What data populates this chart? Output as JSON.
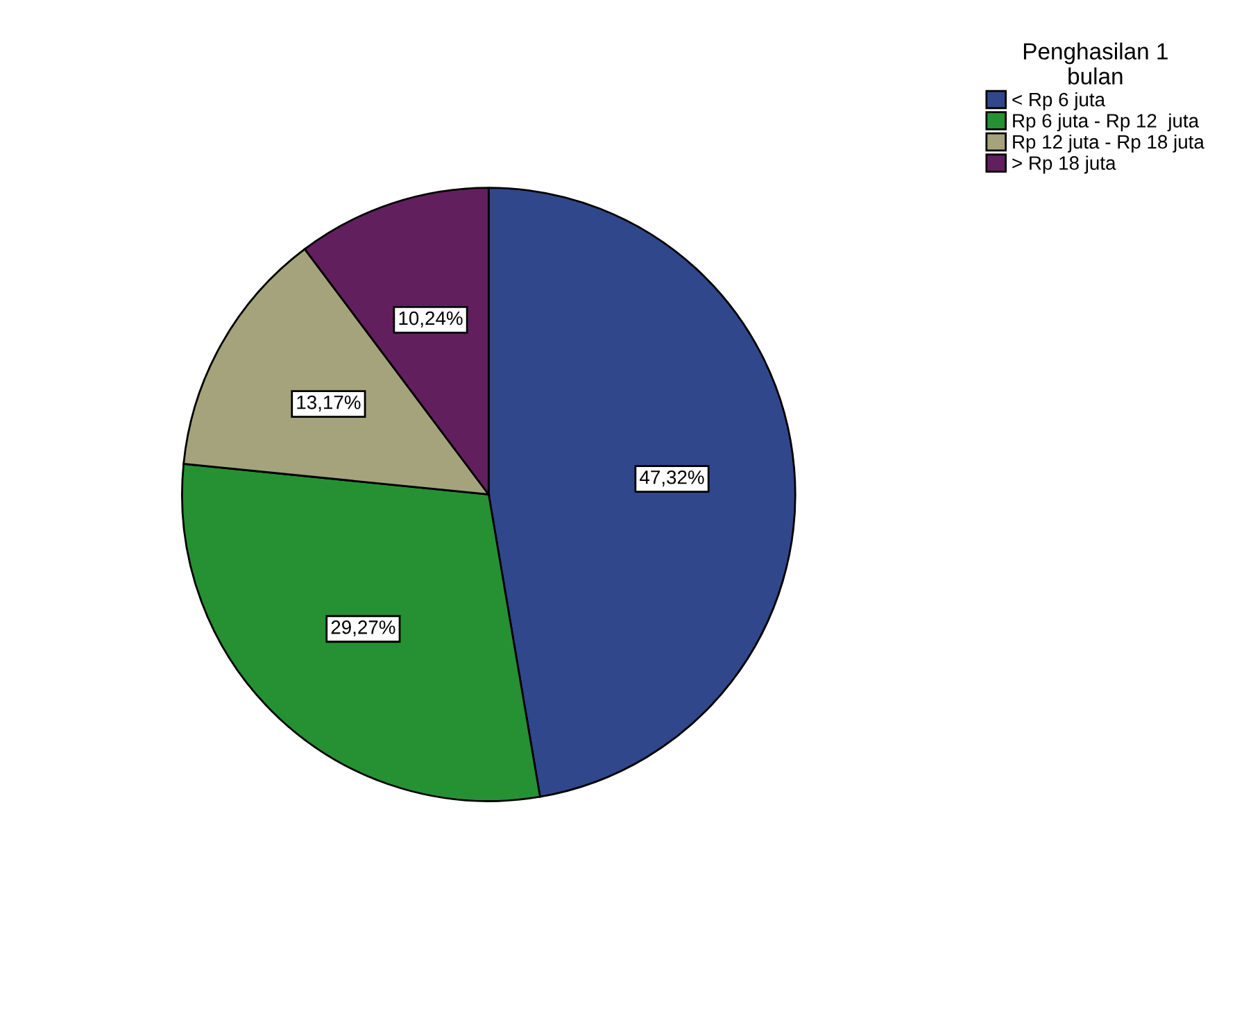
{
  "chart_data": {
    "type": "pie",
    "legend_title": "Penghasilan 1\nbulan",
    "categories": [
      "< Rp 6 juta",
      "Rp 6 juta - Rp 12  juta",
      "Rp 12 juta - Rp 18 juta",
      "> Rp 18 juta"
    ],
    "values": [
      47.32,
      29.27,
      13.17,
      10.24
    ],
    "value_labels": [
      "47,32%",
      "29,27%",
      "13,17%",
      "10,24%"
    ],
    "colors": [
      "#30478c",
      "#259133",
      "#a5a37b",
      "#621f5e"
    ],
    "legend": "top right"
  }
}
